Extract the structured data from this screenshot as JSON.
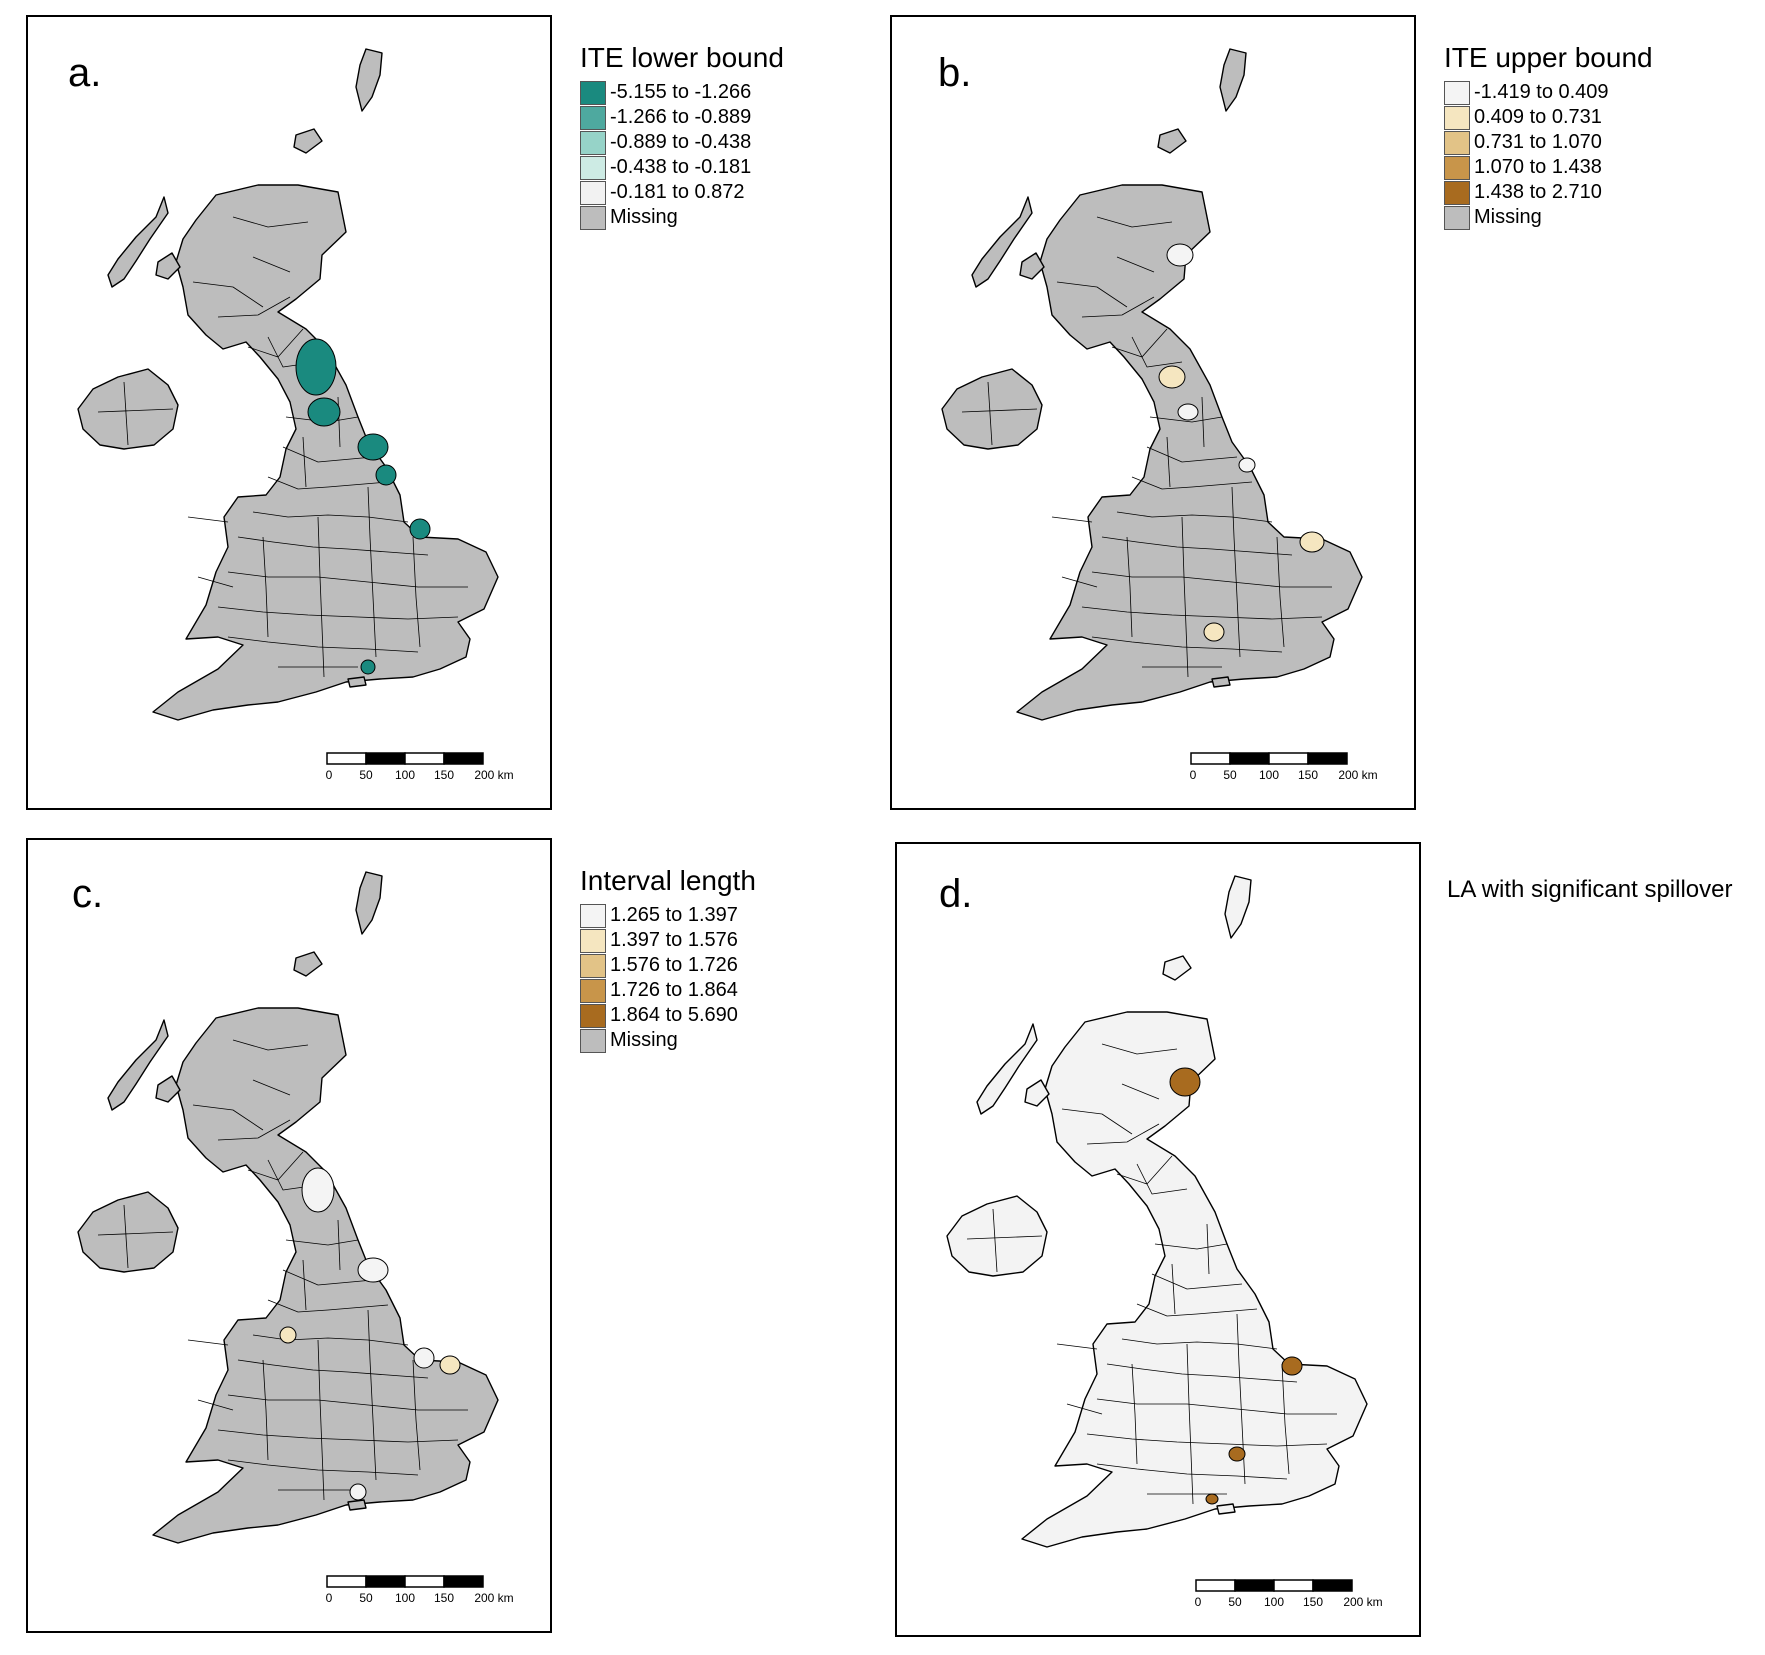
{
  "map_data": {
    "scale_bar": {
      "ticks": [
        "0",
        "50",
        "100",
        "150",
        "200 km"
      ]
    },
    "missing_color": "#bdbdbd",
    "panels": [
      {
        "letter": "a.",
        "legend_title": "ITE lower bound",
        "legend": [
          {
            "label": "-5.155 to -1.266",
            "color": "#1a8a7f"
          },
          {
            "label": "-1.266 to -0.889",
            "color": "#4ea99f"
          },
          {
            "label": "-0.889 to -0.438",
            "color": "#96d3c8"
          },
          {
            "label": "-0.438 to -0.181",
            "color": "#cdebe4"
          },
          {
            "label": "-0.181 to 0.872",
            "color": "#f2f2f2"
          },
          {
            "label": "Missing",
            "color": "#bdbdbd"
          }
        ]
      },
      {
        "letter": "b.",
        "legend_title": "ITE upper bound",
        "legend": [
          {
            "label": "-1.419 to 0.409",
            "color": "#f4f4f4"
          },
          {
            "label": "0.409 to 0.731",
            "color": "#f5e6c0"
          },
          {
            "label": "0.731 to 1.070",
            "color": "#e2c387"
          },
          {
            "label": "1.070 to 1.438",
            "color": "#c8954a"
          },
          {
            "label": "1.438 to 2.710",
            "color": "#a86b1f"
          },
          {
            "label": "Missing",
            "color": "#bdbdbd"
          }
        ]
      },
      {
        "letter": "c.",
        "legend_title": "Interval length",
        "legend": [
          {
            "label": "1.265 to 1.397",
            "color": "#f4f4f4"
          },
          {
            "label": "1.397 to 1.576",
            "color": "#f5e6c0"
          },
          {
            "label": "1.576 to 1.726",
            "color": "#e2c387"
          },
          {
            "label": "1.726 to 1.864",
            "color": "#c8954a"
          },
          {
            "label": "1.864 to 5.690",
            "color": "#a86b1f"
          },
          {
            "label": "Missing",
            "color": "#bdbdbd"
          }
        ]
      },
      {
        "letter": "d.",
        "legend_note": "LA with significant spillover",
        "base_color": "#f3f3f3",
        "highlight_color": "#a86b1f"
      }
    ]
  }
}
